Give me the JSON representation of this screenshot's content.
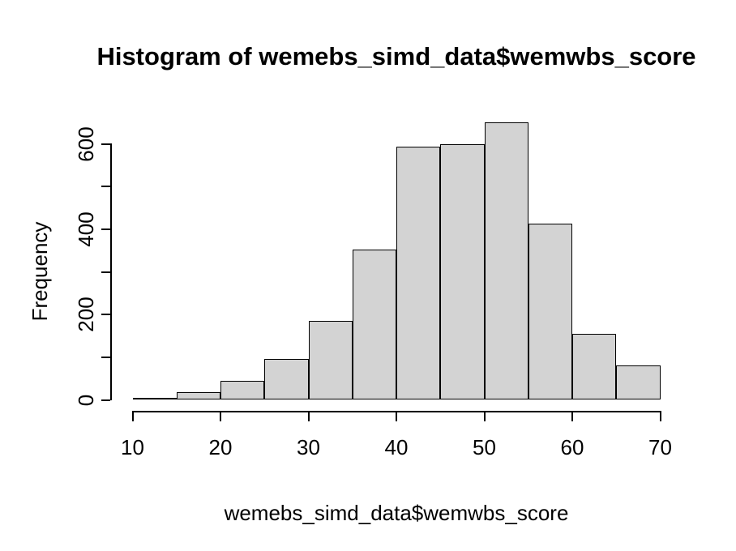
{
  "title": "Histogram of wemebs_simd_data$wemwbs_score",
  "chart_data": {
    "type": "bar",
    "subtype": "histogram",
    "title": "Histogram of wemebs_simd_data$wemwbs_score",
    "xlabel": "wemebs_simd_data$wemwbs_score",
    "ylabel": "Frequency",
    "bin_edges": [
      10,
      15,
      20,
      25,
      30,
      35,
      40,
      45,
      50,
      55,
      60,
      65,
      70
    ],
    "counts": [
      5,
      18,
      45,
      96,
      185,
      353,
      594,
      600,
      650,
      414,
      155,
      80
    ],
    "xlim": [
      10,
      70
    ],
    "ylim": [
      0,
      650
    ],
    "x_tick_values": [
      10,
      20,
      30,
      40,
      50,
      60,
      70
    ],
    "x_tick_labels": [
      "10",
      "20",
      "30",
      "40",
      "50",
      "60",
      "70"
    ],
    "y_tick_values": [
      0,
      100,
      200,
      300,
      400,
      500,
      600
    ],
    "y_labeled_ticks": [
      0,
      200,
      400,
      600
    ],
    "y_tick_labels": [
      "0",
      "200",
      "400",
      "600"
    ],
    "grid": "off",
    "legend": "none",
    "bar_fill_color": "#d3d3d3",
    "bar_border_color": "#000000",
    "background_color": "#ffffff",
    "text_color": "#000000"
  }
}
